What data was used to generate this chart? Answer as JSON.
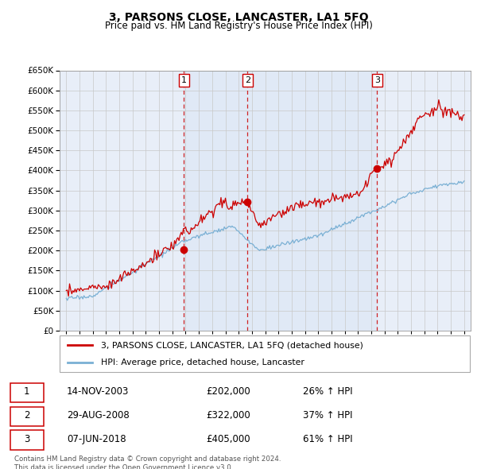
{
  "title": "3, PARSONS CLOSE, LANCASTER, LA1 5FQ",
  "subtitle": "Price paid vs. HM Land Registry's House Price Index (HPI)",
  "red_label": "3, PARSONS CLOSE, LANCASTER, LA1 5FQ (detached house)",
  "blue_label": "HPI: Average price, detached house, Lancaster",
  "transactions": [
    {
      "num": 1,
      "date": "14-NOV-2003",
      "price": "£202,000",
      "hpi": "26% ↑ HPI",
      "year": 2003.87
    },
    {
      "num": 2,
      "date": "29-AUG-2008",
      "price": "£322,000",
      "hpi": "37% ↑ HPI",
      "year": 2008.66
    },
    {
      "num": 3,
      "date": "07-JUN-2018",
      "price": "£405,000",
      "hpi": "61% ↑ HPI",
      "year": 2018.44
    }
  ],
  "t_prices": [
    202000,
    322000,
    405000
  ],
  "ylim": [
    0,
    650000
  ],
  "yticks": [
    0,
    50000,
    100000,
    150000,
    200000,
    250000,
    300000,
    350000,
    400000,
    450000,
    500000,
    550000,
    600000,
    650000
  ],
  "xlim_start": 1994.5,
  "xlim_end": 2025.5,
  "footer": "Contains HM Land Registry data © Crown copyright and database right 2024.\nThis data is licensed under the Open Government Licence v3.0.",
  "bg_color": "#e8eef8",
  "shade_color": "#dce6f5",
  "grid_color": "#c8c8c8",
  "red_color": "#cc0000",
  "blue_color": "#7ab0d4",
  "title_fontsize": 10,
  "subtitle_fontsize": 8.5
}
